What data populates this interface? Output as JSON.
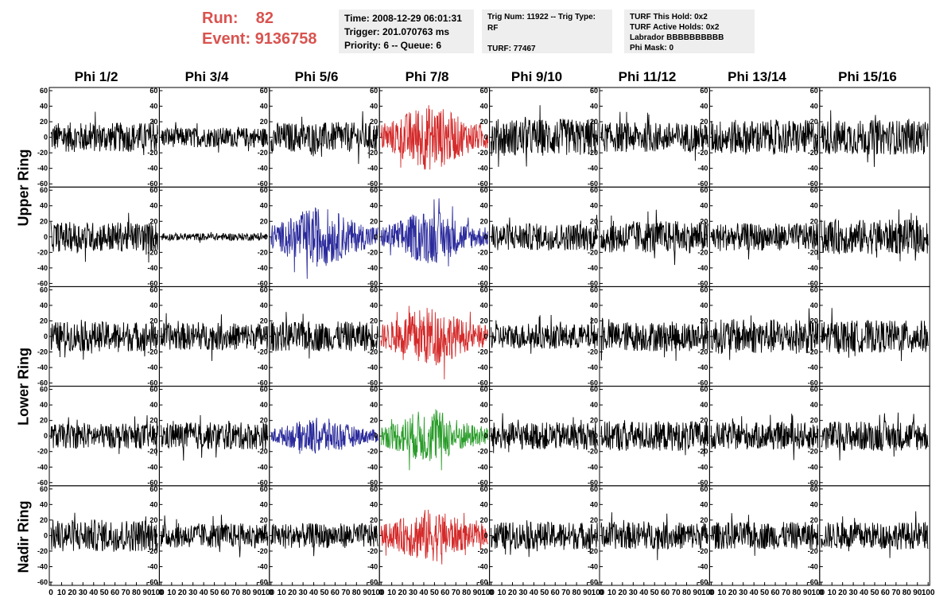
{
  "header": {
    "run_label": "Run:",
    "run_value": "82",
    "event_label": "Event:",
    "event_value": "9136758"
  },
  "time_box": {
    "time": "Time: 2008-12-29 06:01:31",
    "trigger": "Trigger: 201.070763 ms",
    "priority": "Priority: 6 -- Queue: 6"
  },
  "trig_box": {
    "trig": "Trig Num: 11922 -- Trig Type: RF",
    "turf": "TURF: 77467"
  },
  "turf_box": {
    "this_hold": "TURF This Hold: 0x2",
    "active_holds": "TURF Active Holds: 0x2",
    "labrador": "Labrador BBBBBBBBBB",
    "phi_mask": "Phi Mask: 0"
  },
  "phi_columns": [
    "Phi 1/2",
    "Phi 3/4",
    "Phi 5/6",
    "Phi 7/8",
    "Phi 9/10",
    "Phi 11/12",
    "Phi 13/14",
    "Phi 15/16"
  ],
  "ring_labels": [
    "Upper Ring",
    "Lower Ring",
    "Nadir Ring"
  ],
  "chart_data": {
    "type": "line",
    "xlim": [
      0,
      100
    ],
    "ylim": [
      -60,
      60
    ],
    "x_ticks": [
      "0",
      "10",
      "20",
      "30",
      "40",
      "50",
      "60",
      "70",
      "80",
      "90",
      "100"
    ],
    "y_ticks": [
      "60",
      "40",
      "20",
      "0",
      "-20",
      "-40",
      "-60"
    ],
    "rows": 5,
    "cols": 8,
    "colors": {
      "normal": "#000000",
      "red": "#d42a2a",
      "blue": "#2a2a9c",
      "green": "#2a9c2a"
    },
    "trace_colors": [
      [
        "normal",
        "normal",
        "normal",
        "red",
        "normal",
        "normal",
        "normal",
        "normal"
      ],
      [
        "normal",
        "normal",
        "blue",
        "blue",
        "normal",
        "normal",
        "normal",
        "normal"
      ],
      [
        "normal",
        "normal",
        "normal",
        "red",
        "normal",
        "normal",
        "normal",
        "normal"
      ],
      [
        "normal",
        "normal",
        "blue",
        "green",
        "normal",
        "normal",
        "normal",
        "normal"
      ],
      [
        "normal",
        "normal",
        "normal",
        "red",
        "normal",
        "normal",
        "normal",
        "normal"
      ]
    ],
    "amplitudes": [
      [
        12,
        8,
        12,
        20,
        15,
        12,
        14,
        14
      ],
      [
        12,
        3,
        18,
        16,
        11,
        13,
        11,
        14
      ],
      [
        12,
        11,
        12,
        18,
        10,
        12,
        14,
        13
      ],
      [
        10,
        11,
        11,
        16,
        11,
        12,
        11,
        12
      ],
      [
        13,
        10,
        10,
        16,
        11,
        11,
        11,
        11
      ]
    ]
  }
}
